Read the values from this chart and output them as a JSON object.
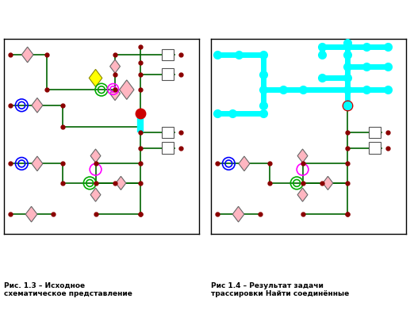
{
  "fig_width": 5.22,
  "fig_height": 3.91,
  "dpi": 100,
  "green": "#006400",
  "cyan": "#00FFFF",
  "red": "#CC0000",
  "pink": "#FFB6C1",
  "yellow": "#FFFF00",
  "dark_red": "#8B0000",
  "panel_bg": "#ffffff",
  "caption_fontsize": 6.5,
  "left_caption": "Рис. 1.3 – Исходное\nсхематическое представление",
  "right_caption": "Рис 1.4 – Результат задачи\nтрассировки Найти соединённые"
}
